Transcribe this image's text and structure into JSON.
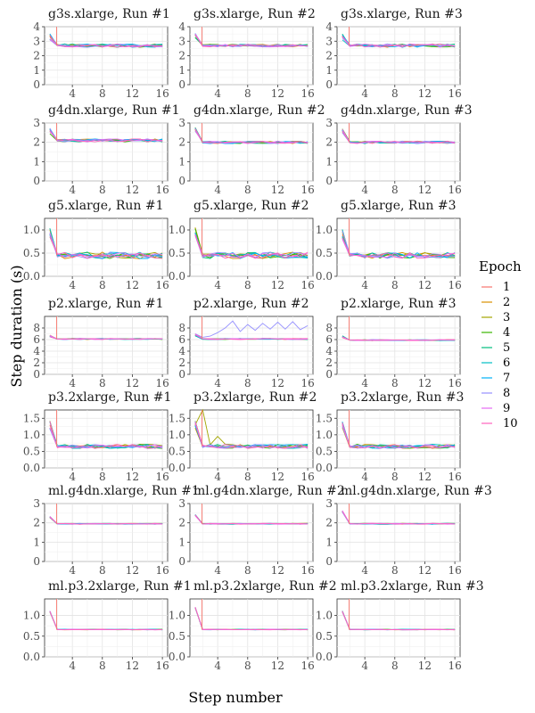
{
  "figure": {
    "xlabel": "Step number",
    "ylabel": "Step duration (s)",
    "legend_title": "Epoch",
    "legend_placement": "right",
    "grid": true
  },
  "legend": [
    {
      "label": "1",
      "color": "#F8766D"
    },
    {
      "label": "2",
      "color": "#D89000"
    },
    {
      "label": "3",
      "color": "#A3A500"
    },
    {
      "label": "4",
      "color": "#39B600"
    },
    {
      "label": "5",
      "color": "#00BF7D"
    },
    {
      "label": "6",
      "color": "#00BFC4"
    },
    {
      "label": "7",
      "color": "#00B0F6"
    },
    {
      "label": "8",
      "color": "#9590FF"
    },
    {
      "label": "9",
      "color": "#E76BF3"
    },
    {
      "label": "10",
      "color": "#FF62BC"
    }
  ],
  "chart_data": [
    {
      "type": "line",
      "title": "g3s.xlarge, Run #1",
      "x": [
        1,
        2,
        3,
        4,
        5,
        6,
        7,
        8,
        9,
        10,
        11,
        12,
        13,
        14,
        15,
        16
      ],
      "ylim": [
        0,
        4
      ],
      "yticks": [
        0,
        1,
        2,
        3,
        4
      ],
      "xticks": [
        4,
        8,
        12,
        16
      ],
      "baseline": 2.7,
      "start": 3.3,
      "noise": 0.15,
      "series_count": 10
    },
    {
      "type": "line",
      "title": "g3s.xlarge, Run #2",
      "x": [
        1,
        2,
        3,
        4,
        5,
        6,
        7,
        8,
        9,
        10,
        11,
        12,
        13,
        14,
        15,
        16
      ],
      "ylim": [
        0,
        4
      ],
      "yticks": [
        0,
        1,
        2,
        3,
        4
      ],
      "xticks": [
        4,
        8,
        12,
        16
      ],
      "baseline": 2.7,
      "start": 3.4,
      "noise": 0.12,
      "series_count": 10
    },
    {
      "type": "line",
      "title": "g3s.xlarge, Run #3",
      "x": [
        1,
        2,
        3,
        4,
        5,
        6,
        7,
        8,
        9,
        10,
        11,
        12,
        13,
        14,
        15,
        16
      ],
      "ylim": [
        0,
        4
      ],
      "yticks": [
        0,
        1,
        2,
        3,
        4
      ],
      "xticks": [
        4,
        8,
        12,
        16
      ],
      "baseline": 2.7,
      "start": 3.3,
      "noise": 0.15,
      "series_count": 10
    },
    {
      "type": "line",
      "title": "g4dn.xlarge, Run #1",
      "x": [
        1,
        2,
        3,
        4,
        5,
        6,
        7,
        8,
        9,
        10,
        11,
        12,
        13,
        14,
        15,
        16
      ],
      "ylim": [
        0,
        3
      ],
      "yticks": [
        0,
        1,
        2,
        3
      ],
      "xticks": [
        4,
        8,
        12,
        16
      ],
      "baseline": 2.1,
      "start": 2.6,
      "noise": 0.1,
      "series_count": 10
    },
    {
      "type": "line",
      "title": "g4dn.xlarge, Run #2",
      "x": [
        1,
        2,
        3,
        4,
        5,
        6,
        7,
        8,
        9,
        10,
        11,
        12,
        13,
        14,
        15,
        16
      ],
      "ylim": [
        0,
        3
      ],
      "yticks": [
        0,
        1,
        2,
        3
      ],
      "xticks": [
        4,
        8,
        12,
        16
      ],
      "baseline": 2.0,
      "start": 2.7,
      "noise": 0.08,
      "series_count": 10
    },
    {
      "type": "line",
      "title": "g4dn.xlarge, Run #3",
      "x": [
        1,
        2,
        3,
        4,
        5,
        6,
        7,
        8,
        9,
        10,
        11,
        12,
        13,
        14,
        15,
        16
      ],
      "ylim": [
        0,
        3
      ],
      "yticks": [
        0,
        1,
        2,
        3
      ],
      "xticks": [
        4,
        8,
        12,
        16
      ],
      "baseline": 2.0,
      "start": 2.6,
      "noise": 0.08,
      "series_count": 10
    },
    {
      "type": "line",
      "title": "g5.xlarge, Run #1",
      "x": [
        1,
        2,
        3,
        4,
        5,
        6,
        7,
        8,
        9,
        10,
        11,
        12,
        13,
        14,
        15,
        16
      ],
      "ylim": [
        0,
        1.25
      ],
      "yticks": [
        0.0,
        0.5,
        1.0
      ],
      "ytick_labels": [
        "0.0",
        "0.5",
        "1.0"
      ],
      "xticks": [
        4,
        8,
        12,
        16
      ],
      "baseline": 0.45,
      "start": 0.9,
      "noise": 0.09,
      "series_count": 10
    },
    {
      "type": "line",
      "title": "g5.xlarge, Run #2",
      "x": [
        1,
        2,
        3,
        4,
        5,
        6,
        7,
        8,
        9,
        10,
        11,
        12,
        13,
        14,
        15,
        16
      ],
      "ylim": [
        0,
        1.25
      ],
      "yticks": [
        0.0,
        0.5,
        1.0
      ],
      "ytick_labels": [
        "0.0",
        "0.5",
        "1.0"
      ],
      "xticks": [
        4,
        8,
        12,
        16
      ],
      "baseline": 0.45,
      "start": 0.95,
      "noise": 0.09,
      "series_count": 10
    },
    {
      "type": "line",
      "title": "g5.xlarge, Run #3",
      "x": [
        1,
        2,
        3,
        4,
        5,
        6,
        7,
        8,
        9,
        10,
        11,
        12,
        13,
        14,
        15,
        16
      ],
      "ylim": [
        0,
        1.25
      ],
      "yticks": [
        0.0,
        0.5,
        1.0
      ],
      "ytick_labels": [
        "0.0",
        "0.5",
        "1.0"
      ],
      "xticks": [
        4,
        8,
        12,
        16
      ],
      "baseline": 0.45,
      "start": 0.9,
      "noise": 0.08,
      "series_count": 10
    },
    {
      "type": "line",
      "title": "p2.xlarge, Run #1",
      "x": [
        1,
        2,
        3,
        4,
        5,
        6,
        7,
        8,
        9,
        10,
        11,
        12,
        13,
        14,
        15,
        16
      ],
      "ylim": [
        0,
        10
      ],
      "yticks": [
        0,
        2,
        4,
        6,
        8
      ],
      "xticks": [
        4,
        8,
        12,
        16
      ],
      "baseline": 6.1,
      "start": 6.6,
      "noise": 0.12,
      "series_count": 10
    },
    {
      "type": "line",
      "title": "p2.xlarge, Run #2",
      "x": [
        1,
        2,
        3,
        4,
        5,
        6,
        7,
        8,
        9,
        10,
        11,
        12,
        13,
        14,
        15,
        16
      ],
      "ylim": [
        0,
        10
      ],
      "yticks": [
        0,
        2,
        4,
        6,
        8
      ],
      "xticks": [
        4,
        8,
        12,
        16
      ],
      "baseline": 6.1,
      "start": 6.8,
      "noise": 0.12,
      "series_count": 10,
      "highlight": {
        "series": 7,
        "values": [
          7.0,
          6.4,
          6.6,
          7.2,
          8.0,
          9.2,
          7.4,
          8.6,
          7.6,
          8.8,
          7.8,
          9.0,
          7.8,
          9.1,
          7.7,
          8.4
        ]
      }
    },
    {
      "type": "line",
      "title": "p2.xlarge, Run #3",
      "x": [
        1,
        2,
        3,
        4,
        5,
        6,
        7,
        8,
        9,
        10,
        11,
        12,
        13,
        14,
        15,
        16
      ],
      "ylim": [
        0,
        10
      ],
      "yticks": [
        0,
        2,
        4,
        6,
        8
      ],
      "xticks": [
        4,
        8,
        12,
        16
      ],
      "baseline": 5.9,
      "start": 6.5,
      "noise": 0.1,
      "series_count": 10
    },
    {
      "type": "line",
      "title": "p3.2xlarge, Run #1",
      "x": [
        1,
        2,
        3,
        4,
        5,
        6,
        7,
        8,
        9,
        10,
        11,
        12,
        13,
        14,
        15,
        16
      ],
      "ylim": [
        0,
        1.75
      ],
      "yticks": [
        0.0,
        0.5,
        1.0,
        1.5
      ],
      "ytick_labels": [
        "0.0",
        "0.5",
        "1.0",
        "1.5"
      ],
      "xticks": [
        4,
        8,
        12,
        16
      ],
      "baseline": 0.65,
      "start": 1.3,
      "noise": 0.08,
      "series_count": 10
    },
    {
      "type": "line",
      "title": "p3.2xlarge, Run #2",
      "x": [
        1,
        2,
        3,
        4,
        5,
        6,
        7,
        8,
        9,
        10,
        11,
        12,
        13,
        14,
        15,
        16
      ],
      "ylim": [
        0,
        1.75
      ],
      "yticks": [
        0.0,
        0.5,
        1.0,
        1.5
      ],
      "ytick_labels": [
        "0.0",
        "0.5",
        "1.0",
        "1.5"
      ],
      "xticks": [
        4,
        8,
        12,
        16
      ],
      "baseline": 0.65,
      "start": 1.3,
      "noise": 0.08,
      "series_count": 10,
      "highlight": {
        "series": 2,
        "values": [
          1.3,
          1.75,
          0.7,
          0.95,
          0.72,
          0.7,
          0.66,
          0.68,
          0.66,
          0.65,
          0.66,
          0.65,
          0.66,
          0.65,
          0.66,
          0.65
        ]
      }
    },
    {
      "type": "line",
      "title": "p3.2xlarge, Run #3",
      "x": [
        1,
        2,
        3,
        4,
        5,
        6,
        7,
        8,
        9,
        10,
        11,
        12,
        13,
        14,
        15,
        16
      ],
      "ylim": [
        0,
        1.75
      ],
      "yticks": [
        0.0,
        0.5,
        1.0,
        1.5
      ],
      "ytick_labels": [
        "0.0",
        "0.5",
        "1.0",
        "1.5"
      ],
      "xticks": [
        4,
        8,
        12,
        16
      ],
      "baseline": 0.65,
      "start": 1.3,
      "noise": 0.08,
      "series_count": 10
    },
    {
      "type": "line",
      "title": "ml.g4dn.xlarge, Run #1",
      "x": [
        1,
        2,
        3,
        4,
        5,
        6,
        7,
        8,
        9,
        10,
        11,
        12,
        13,
        14,
        15,
        16
      ],
      "ylim": [
        0,
        3
      ],
      "yticks": [
        0,
        1,
        2,
        3
      ],
      "xticks": [
        4,
        8,
        12,
        16
      ],
      "baseline": 1.95,
      "start": 2.3,
      "noise": 0.03,
      "series_count": 10
    },
    {
      "type": "line",
      "title": "ml.g4dn.xlarge, Run #2",
      "x": [
        1,
        2,
        3,
        4,
        5,
        6,
        7,
        8,
        9,
        10,
        11,
        12,
        13,
        14,
        15,
        16
      ],
      "ylim": [
        0,
        3
      ],
      "yticks": [
        0,
        1,
        2,
        3
      ],
      "xticks": [
        4,
        8,
        12,
        16
      ],
      "baseline": 1.95,
      "start": 2.4,
      "noise": 0.03,
      "series_count": 10
    },
    {
      "type": "line",
      "title": "ml.g4dn.xlarge, Run #3",
      "x": [
        1,
        2,
        3,
        4,
        5,
        6,
        7,
        8,
        9,
        10,
        11,
        12,
        13,
        14,
        15,
        16
      ],
      "ylim": [
        0,
        3
      ],
      "yticks": [
        0,
        1,
        2,
        3
      ],
      "xticks": [
        4,
        8,
        12,
        16
      ],
      "baseline": 1.95,
      "start": 2.6,
      "noise": 0.03,
      "series_count": 10
    },
    {
      "type": "line",
      "title": "ml.p3.2xlarge, Run #1",
      "x": [
        1,
        2,
        3,
        4,
        5,
        6,
        7,
        8,
        9,
        10,
        11,
        12,
        13,
        14,
        15,
        16
      ],
      "ylim": [
        0,
        1.4
      ],
      "yticks": [
        0.0,
        0.5,
        1.0
      ],
      "ytick_labels": [
        "0.0",
        "0.5",
        "1.0"
      ],
      "xticks": [
        4,
        8,
        12,
        16
      ],
      "baseline": 0.66,
      "start": 1.1,
      "noise": 0.01,
      "series_count": 10
    },
    {
      "type": "line",
      "title": "ml.p3.2xlarge, Run #2",
      "x": [
        1,
        2,
        3,
        4,
        5,
        6,
        7,
        8,
        9,
        10,
        11,
        12,
        13,
        14,
        15,
        16
      ],
      "ylim": [
        0,
        1.4
      ],
      "yticks": [
        0.0,
        0.5,
        1.0
      ],
      "ytick_labels": [
        "0.0",
        "0.5",
        "1.0"
      ],
      "xticks": [
        4,
        8,
        12,
        16
      ],
      "baseline": 0.66,
      "start": 1.2,
      "noise": 0.01,
      "series_count": 10
    },
    {
      "type": "line",
      "title": "ml.p3.2xlarge, Run #3",
      "x": [
        1,
        2,
        3,
        4,
        5,
        6,
        7,
        8,
        9,
        10,
        11,
        12,
        13,
        14,
        15,
        16
      ],
      "ylim": [
        0,
        1.4
      ],
      "yticks": [
        0.0,
        0.5,
        1.0
      ],
      "ytick_labels": [
        "0.0",
        "0.5",
        "1.0"
      ],
      "xticks": [
        4,
        8,
        12,
        16
      ],
      "baseline": 0.66,
      "start": 1.1,
      "noise": 0.01,
      "series_count": 10
    }
  ]
}
